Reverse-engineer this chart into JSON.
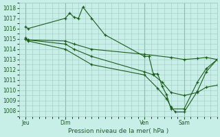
{
  "xlabel": "Pression niveau de la mer( hPa )",
  "ylim": [
    1007.5,
    1018.5
  ],
  "yticks": [
    1008,
    1009,
    1010,
    1011,
    1012,
    1013,
    1014,
    1015,
    1016,
    1017,
    1018
  ],
  "bg_color": "#c8eee8",
  "grid_color": "#a0c8c0",
  "line_color": "#1a5c1a",
  "xtick_labels": [
    "Jeu",
    "Dim",
    "Ven",
    "Sam"
  ],
  "xtick_positions": [
    0,
    18,
    54,
    72
  ],
  "xlim": [
    -3,
    87
  ],
  "lines": [
    {
      "x": [
        0,
        1,
        18,
        20,
        22,
        24,
        26,
        30,
        36,
        54,
        56,
        58,
        60,
        62,
        64,
        66,
        72,
        78,
        82,
        87
      ],
      "y": [
        1016.2,
        1016.0,
        1017.0,
        1017.5,
        1017.1,
        1017.0,
        1018.1,
        1017.0,
        1015.4,
        1013.3,
        1013.3,
        1011.6,
        1011.6,
        1010.4,
        1009.6,
        1008.2,
        1008.2,
        1010.8,
        1012.1,
        1013.0
      ]
    },
    {
      "x": [
        0,
        1,
        18,
        22,
        30,
        54,
        66,
        72,
        78,
        82,
        87
      ],
      "y": [
        1015.1,
        1014.9,
        1014.8,
        1014.5,
        1014.0,
        1013.5,
        1013.2,
        1013.0,
        1013.1,
        1013.2,
        1013.0
      ]
    },
    {
      "x": [
        0,
        1,
        18,
        22,
        30,
        54,
        58,
        62,
        66,
        72,
        78,
        82,
        87
      ],
      "y": [
        1015.0,
        1014.9,
        1014.5,
        1014.0,
        1013.3,
        1011.8,
        1011.5,
        1010.8,
        1009.8,
        1009.5,
        1009.8,
        1010.3,
        1010.5
      ]
    },
    {
      "x": [
        0,
        1,
        18,
        30,
        54,
        60,
        64,
        66,
        68,
        72,
        78,
        82,
        87
      ],
      "y": [
        1015.0,
        1014.8,
        1014.0,
        1012.5,
        1011.5,
        1010.2,
        1009.2,
        1008.4,
        1007.9,
        1007.9,
        1009.9,
        1011.8,
        1013.0
      ]
    }
  ]
}
